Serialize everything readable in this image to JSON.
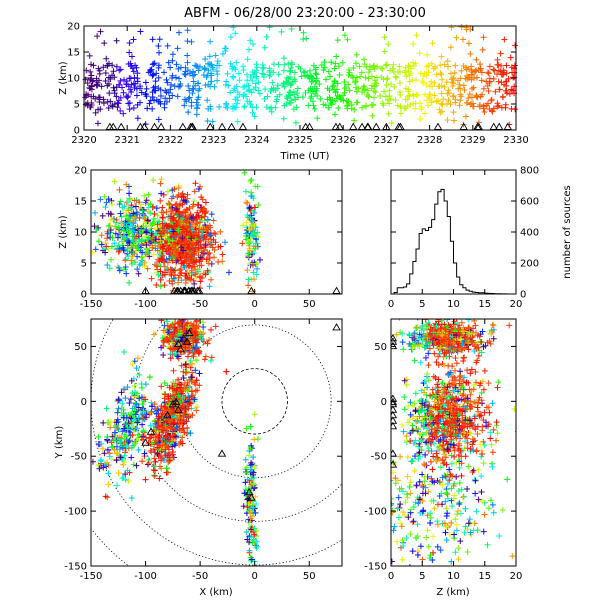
{
  "figure": {
    "title": "ABFM - 06/28/00 23:20:00 - 23:30:00"
  },
  "chart_data": [
    {
      "id": "time-height",
      "type": "scatter",
      "title": "",
      "xlabel": "Time (UT)",
      "ylabel": "Z (km)",
      "xlim": [
        2320,
        2330
      ],
      "ylim": [
        0,
        20
      ],
      "x_ticks": [
        "2320",
        "2321",
        "2322",
        "2323",
        "2324",
        "2325",
        "2326",
        "2327",
        "2328",
        "2329",
        "2330"
      ],
      "y_ticks": [
        "0",
        "5",
        "10",
        "15",
        "20"
      ],
      "marker": "plus",
      "color_encoding": "time (purple at 23:20 to red at 23:30)",
      "core_z_range_km": [
        4,
        13
      ],
      "station_markers": "triangles along Z=0"
    },
    {
      "id": "xz-projection",
      "type": "scatter",
      "xlabel": "",
      "ylabel": "Z (km)",
      "xlim": [
        -150,
        80
      ],
      "ylim": [
        0,
        20
      ],
      "x_ticks": [
        "-150",
        "-100",
        "-50",
        "0",
        "50"
      ],
      "y_ticks": [
        "0",
        "5",
        "10",
        "15",
        "20"
      ],
      "clusters": [
        {
          "x_center": -65,
          "x_spread": 13,
          "z_center": 9,
          "z_spread": 3.2
        },
        {
          "x_center": -110,
          "x_spread": 15,
          "z_center": 10,
          "z_spread": 3
        },
        {
          "x_center": -3,
          "x_spread": 3,
          "z_center": 9,
          "z_spread": 5
        }
      ]
    },
    {
      "id": "height-histogram",
      "type": "bar",
      "xlabel": "",
      "ylabel": "number of sources",
      "xlim": [
        0,
        20
      ],
      "ylim": [
        0,
        800
      ],
      "x_ticks": [
        "0",
        "5",
        "10",
        "15",
        "20"
      ],
      "y_ticks": [
        "0",
        "200",
        "400",
        "600",
        "800"
      ],
      "bin_width_km": 0.5,
      "bin_start_km": 0,
      "counts": [
        0,
        10,
        40,
        40,
        45,
        65,
        130,
        210,
        290,
        390,
        420,
        410,
        430,
        480,
        580,
        660,
        675,
        600,
        500,
        340,
        200,
        110,
        60,
        40,
        25,
        18,
        12,
        10,
        8,
        8,
        5,
        4,
        3,
        2,
        2,
        1,
        1,
        0,
        0,
        0
      ]
    },
    {
      "id": "plan-view",
      "type": "scatter",
      "xlabel": "X (km)",
      "ylabel": "Y (km)",
      "xlim": [
        -150,
        80
      ],
      "ylim": [
        -150,
        75
      ],
      "x_ticks": [
        "-150",
        "-100",
        "-50",
        "0",
        "50"
      ],
      "y_ticks": [
        "-150",
        "-100",
        "-50",
        "0",
        "50"
      ],
      "range_rings_km": [
        30,
        70,
        110,
        150,
        190
      ],
      "clusters": [
        {
          "x_center": -65,
          "x_spread": 9,
          "y_center": 58,
          "y_spread": 8
        },
        {
          "x_center": -75,
          "x_spread": 12,
          "y_center": -15,
          "y_spread": 22
        },
        {
          "x_center": -118,
          "x_spread": 16,
          "y_center": -25,
          "y_spread": 22
        },
        {
          "x_center": -3,
          "x_spread": 3,
          "y_center": -95,
          "y_spread": 28
        }
      ]
    },
    {
      "id": "zy-projection",
      "type": "scatter",
      "xlabel": "Z (km)",
      "ylabel": "",
      "xlim": [
        0,
        20
      ],
      "ylim": [
        -150,
        75
      ],
      "x_ticks": [
        "0",
        "5",
        "10",
        "15",
        "20"
      ],
      "y_ticks": [
        "-150",
        "-100",
        "-50",
        "0",
        "50"
      ]
    }
  ]
}
